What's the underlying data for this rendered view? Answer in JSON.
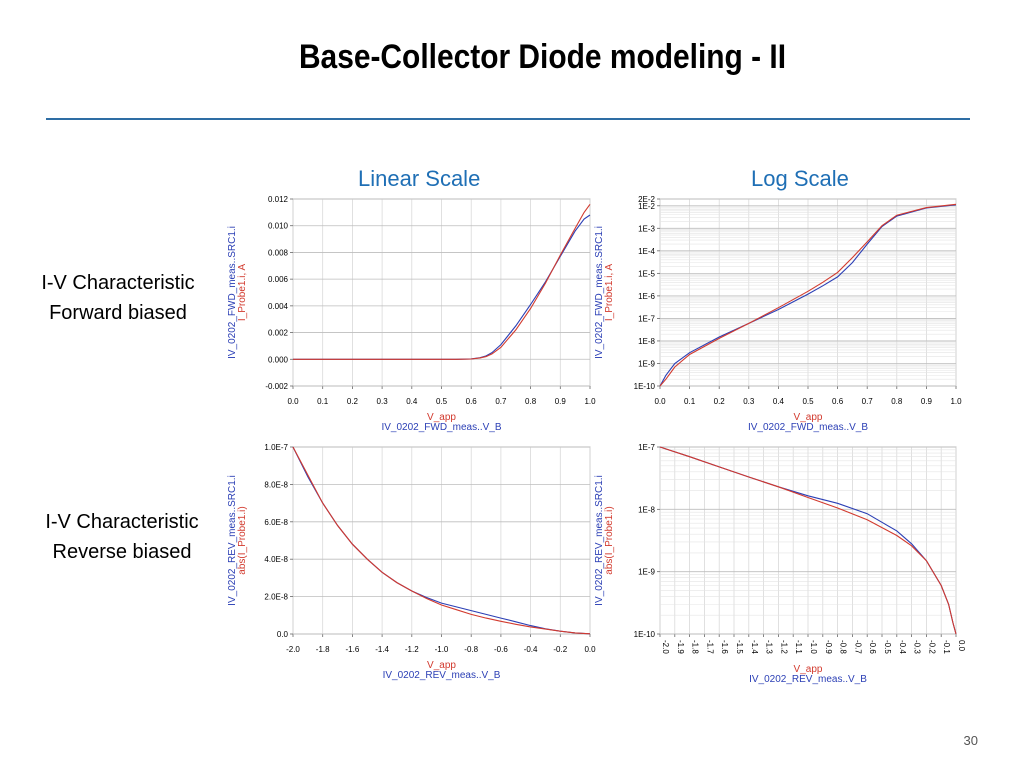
{
  "slide": {
    "title": "Base-Collector Diode modeling - II",
    "col_linear": "Linear Scale",
    "col_log": "Log Scale",
    "row_fwd_line1": "I-V Characteristic",
    "row_fwd_line2": "Forward biased",
    "row_rev_line1": "I-V Characteristic",
    "row_rev_line2": "Reverse biased",
    "page_number": "30"
  },
  "colors": {
    "measured": "#2b3fb5",
    "model": "#d23a2e",
    "rule": "#2e6da4",
    "heading": "#1f6fb5"
  },
  "chart_data": [
    {
      "id": "fwd_lin",
      "type": "line",
      "scale_y": "linear",
      "xlabel": "V_app",
      "xsub": "IV_0202_FWD_meas..V_B",
      "ylabel": "IV_0202_FWD_meas..SRC1.i",
      "ylabel2": "I_Probe1.i, A",
      "xlim": [
        0.0,
        1.0
      ],
      "ylim": [
        -0.002,
        0.012
      ],
      "xticks": [
        "0.0",
        "0.1",
        "0.2",
        "0.3",
        "0.4",
        "0.5",
        "0.6",
        "0.7",
        "0.8",
        "0.9",
        "1.0"
      ],
      "yticks": [
        "-0.002",
        "0.000",
        "0.002",
        "0.004",
        "0.006",
        "0.008",
        "0.010",
        "0.012"
      ],
      "series": [
        {
          "color": "#2b3fb5",
          "x": [
            0.0,
            0.55,
            0.6,
            0.63,
            0.65,
            0.67,
            0.7,
            0.75,
            0.8,
            0.85,
            0.9,
            0.95,
            0.98,
            1.0
          ],
          "y": [
            0.0,
            0.0,
            3e-05,
            0.00012,
            0.00025,
            0.0005,
            0.0011,
            0.0025,
            0.0041,
            0.0058,
            0.0077,
            0.0096,
            0.0105,
            0.0108
          ]
        },
        {
          "color": "#d23a2e",
          "x": [
            0.0,
            0.55,
            0.6,
            0.63,
            0.65,
            0.67,
            0.7,
            0.75,
            0.8,
            0.85,
            0.9,
            0.95,
            0.98,
            1.0
          ],
          "y": [
            0.0,
            0.0,
            2e-05,
            0.0001,
            0.0002,
            0.0004,
            0.0009,
            0.0022,
            0.0038,
            0.0057,
            0.0078,
            0.0098,
            0.011,
            0.0116
          ]
        }
      ]
    },
    {
      "id": "fwd_log",
      "type": "line",
      "scale_y": "log",
      "xlabel": "V_app",
      "xsub": "IV_0202_FWD_meas..V_B",
      "ylabel": "IV_0202_FWD_meas..SRC1.i",
      "ylabel2": "I_Probe1.i, A",
      "xlim": [
        0.0,
        1.0
      ],
      "ylim": [
        1e-10,
        0.02
      ],
      "xticks": [
        "0.0",
        "0.1",
        "0.2",
        "0.3",
        "0.4",
        "0.5",
        "0.6",
        "0.7",
        "0.8",
        "0.9",
        "1.0"
      ],
      "yticks": [
        "1E-10",
        "1E-9",
        "1E-8",
        "1E-7",
        "1E-6",
        "1E-5",
        "1E-4",
        "1E-3",
        "1E-2",
        "2E-2"
      ],
      "series": [
        {
          "color": "#2b3fb5",
          "x": [
            0.0,
            0.02,
            0.05,
            0.1,
            0.2,
            0.3,
            0.4,
            0.5,
            0.55,
            0.6,
            0.65,
            0.7,
            0.75,
            0.8,
            0.9,
            1.0
          ],
          "y": [
            1e-10,
            3e-10,
            1e-09,
            3e-09,
            1.5e-08,
            6e-08,
            2.5e-07,
            1.2e-06,
            2.8e-06,
            7e-06,
            3e-05,
            0.0002,
            0.0012,
            0.0035,
            0.008,
            0.011
          ]
        },
        {
          "color": "#d23a2e",
          "x": [
            0.0,
            0.02,
            0.05,
            0.1,
            0.2,
            0.3,
            0.4,
            0.5,
            0.55,
            0.6,
            0.65,
            0.7,
            0.75,
            0.8,
            0.9,
            1.0
          ],
          "y": [
            1e-10,
            2e-10,
            7e-10,
            2.5e-09,
            1.3e-08,
            6e-08,
            3e-07,
            1.6e-06,
            4e-06,
            1.1e-05,
            5e-05,
            0.00025,
            0.0013,
            0.0038,
            0.0083,
            0.0116
          ]
        }
      ]
    },
    {
      "id": "rev_lin",
      "type": "line",
      "scale_y": "linear",
      "xlabel": "V_app",
      "xsub": "IV_0202_REV_meas..V_B",
      "ylabel": "IV_0202_REV_meas..SRC1.i",
      "ylabel2": "abs(I_Probe1.i)",
      "xlim": [
        -2.0,
        0.0
      ],
      "ylim": [
        0.0,
        1e-07
      ],
      "xticks": [
        "-2.0",
        "-1.8",
        "-1.6",
        "-1.4",
        "-1.2",
        "-1.0",
        "-0.8",
        "-0.6",
        "-0.4",
        "-0.2",
        "0.0"
      ],
      "yticks": [
        "0.0",
        "2.0E-8",
        "4.0E-8",
        "6.0E-8",
        "8.0E-8",
        "1.0E-7"
      ],
      "series": [
        {
          "color": "#2b3fb5",
          "x": [
            -2.0,
            -1.9,
            -1.8,
            -1.7,
            -1.6,
            -1.5,
            -1.4,
            -1.3,
            -1.2,
            -1.1,
            -1.0,
            -0.9,
            -0.8,
            -0.7,
            -0.6,
            -0.5,
            -0.4,
            -0.3,
            -0.2,
            -0.1,
            0.0
          ],
          "y": [
            1e-07,
            8.4e-08,
            7e-08,
            5.8e-08,
            4.8e-08,
            4e-08,
            3.3e-08,
            2.75e-08,
            2.3e-08,
            1.95e-08,
            1.65e-08,
            1.45e-08,
            1.25e-08,
            1.05e-08,
            8.5e-09,
            6.5e-09,
            4.5e-09,
            2.8e-09,
            1.5e-09,
            6e-10,
            1e-10
          ]
        },
        {
          "color": "#d23a2e",
          "x": [
            -2.0,
            -1.9,
            -1.8,
            -1.7,
            -1.6,
            -1.5,
            -1.4,
            -1.3,
            -1.2,
            -1.1,
            -1.0,
            -0.9,
            -0.8,
            -0.7,
            -0.6,
            -0.5,
            -0.4,
            -0.3,
            -0.2,
            -0.1,
            0.0
          ],
          "y": [
            1e-07,
            8.5e-08,
            7e-08,
            5.8e-08,
            4.8e-08,
            4e-08,
            3.3e-08,
            2.75e-08,
            2.3e-08,
            1.9e-08,
            1.55e-08,
            1.3e-08,
            1.05e-08,
            8.5e-09,
            6.8e-09,
            5.2e-09,
            3.8e-09,
            2.6e-09,
            1.5e-09,
            6e-10,
            1e-10
          ]
        }
      ]
    },
    {
      "id": "rev_log",
      "type": "line",
      "scale_y": "log",
      "xlabel": "V_app",
      "xsub": "IV_0202_REV_meas..V_B",
      "ylabel": "IV_0202_REV_meas..SRC1.i",
      "ylabel2": "abs(I_Probe1.i)",
      "xlim": [
        -2.0,
        0.0
      ],
      "ylim": [
        1e-10,
        1e-07
      ],
      "xticks": [
        "-2.0",
        "-1.9",
        "-1.8",
        "-1.7",
        "-1.6",
        "-1.5",
        "-1.4",
        "-1.3",
        "-1.2",
        "-1.1",
        "-1.0",
        "-0.9",
        "-0.8",
        "-0.7",
        "-0.6",
        "-0.5",
        "-0.4",
        "-0.3",
        "-0.2",
        "-0.1",
        "0.0"
      ],
      "yticks": [
        "1E-10",
        "1E-9",
        "1E-8",
        "1E-7"
      ],
      "series": [
        {
          "color": "#2b3fb5",
          "x": [
            -2.0,
            -1.8,
            -1.6,
            -1.4,
            -1.2,
            -1.0,
            -0.8,
            -0.6,
            -0.4,
            -0.3,
            -0.2,
            -0.1,
            -0.05,
            -0.02,
            0.0
          ],
          "y": [
            1e-07,
            7e-08,
            4.8e-08,
            3.3e-08,
            2.3e-08,
            1.65e-08,
            1.25e-08,
            8.5e-09,
            4.5e-09,
            2.8e-09,
            1.5e-09,
            6e-10,
            3e-10,
            1.5e-10,
            1e-10
          ]
        },
        {
          "color": "#d23a2e",
          "x": [
            -2.0,
            -1.8,
            -1.6,
            -1.4,
            -1.2,
            -1.0,
            -0.8,
            -0.6,
            -0.4,
            -0.3,
            -0.2,
            -0.1,
            -0.05,
            -0.02,
            0.0
          ],
          "y": [
            1e-07,
            7e-08,
            4.8e-08,
            3.3e-08,
            2.3e-08,
            1.55e-08,
            1.05e-08,
            6.8e-09,
            3.8e-09,
            2.6e-09,
            1.5e-09,
            6e-10,
            3e-10,
            1.5e-10,
            1e-10
          ]
        }
      ]
    }
  ]
}
